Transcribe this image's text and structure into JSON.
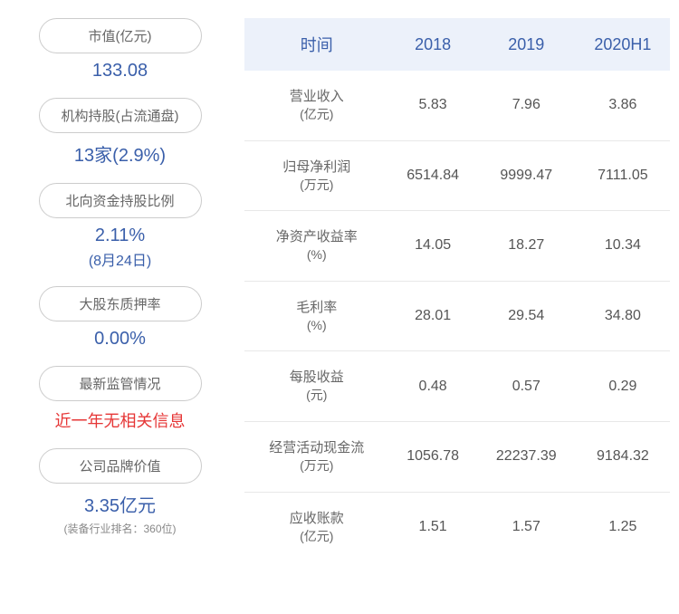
{
  "left_panel": {
    "items": [
      {
        "label": "市值(亿元)",
        "value": "133.08",
        "value_class": "pill-value"
      },
      {
        "label": "机构持股(占流通盘)",
        "value": "13家(2.9%)",
        "value_class": "pill-value"
      },
      {
        "label": "北向资金持股比例",
        "value": "2.11%",
        "value_class": "pill-value",
        "subvalue": "(8月24日)"
      },
      {
        "label": "大股东质押率",
        "value": "0.00%",
        "value_class": "pill-value"
      },
      {
        "label": "最新监管情况",
        "value": "近一年无相关信息",
        "value_class": "pill-value-red"
      },
      {
        "label": "公司品牌价值",
        "value": "3.35亿元",
        "value_class": "pill-value",
        "subtext": "(装备行业排名：360位)"
      }
    ]
  },
  "table": {
    "header": {
      "col0": "时间",
      "col1": "2018",
      "col2": "2019",
      "col3": "2020H1"
    },
    "rows": [
      {
        "label_main": "营业收入",
        "label_unit": "(亿元)",
        "c1": "5.83",
        "c2": "7.96",
        "c3": "3.86"
      },
      {
        "label_main": "归母净利润",
        "label_unit": "(万元)",
        "c1": "6514.84",
        "c2": "9999.47",
        "c3": "7111.05"
      },
      {
        "label_main": "净资产收益率",
        "label_unit": "(%)",
        "c1": "14.05",
        "c2": "18.27",
        "c3": "10.34"
      },
      {
        "label_main": "毛利率",
        "label_unit": "(%)",
        "c1": "28.01",
        "c2": "29.54",
        "c3": "34.80"
      },
      {
        "label_main": "每股收益",
        "label_unit": "(元)",
        "c1": "0.48",
        "c2": "0.57",
        "c3": "0.29"
      },
      {
        "label_main": "经营活动现金流",
        "label_unit": "(万元)",
        "c1": "1056.78",
        "c2": "22237.39",
        "c3": "9184.32"
      },
      {
        "label_main": "应收账款",
        "label_unit": "(亿元)",
        "c1": "1.51",
        "c2": "1.57",
        "c3": "1.25"
      }
    ]
  },
  "colors": {
    "header_bg": "#ecf1fa",
    "header_text": "#3a5faa",
    "value_text": "#3a5faa",
    "body_text": "#555555",
    "label_text": "#666666",
    "border": "#e8e8e8",
    "pill_border": "#cccccc",
    "red_text": "#e63636"
  }
}
